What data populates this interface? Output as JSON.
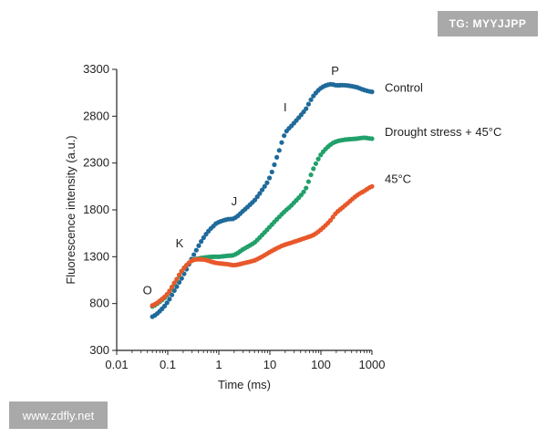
{
  "watermarks": {
    "top": "TG: MYYJJPP",
    "bottom": "www.zdfly.net"
  },
  "chart_data": {
    "type": "scatter",
    "title": "",
    "xlabel": "Time (ms)",
    "ylabel": "Fluorescence intensity (a.u.)",
    "x_scale": "log",
    "xlim": [
      0.01,
      1000
    ],
    "ylim": [
      300,
      3300
    ],
    "xticks": [
      0.01,
      0.1,
      1,
      10,
      100,
      1000
    ],
    "xtick_labels": [
      "0.01",
      "0.1",
      "1",
      "10",
      "100",
      "1000"
    ],
    "yticks": [
      300,
      800,
      1300,
      1800,
      2300,
      2800,
      3300
    ],
    "ytick_labels": [
      "300",
      "800",
      "1300",
      "1800",
      "2300",
      "2800",
      "3300"
    ],
    "grid": false,
    "legend": "inline-right",
    "series": [
      {
        "name": "Control",
        "color": "#1f6a9a",
        "x": [
          0.05,
          0.07,
          0.1,
          0.15,
          0.2,
          0.3,
          0.5,
          0.8,
          1,
          1.5,
          2,
          3,
          5,
          7,
          10,
          15,
          20,
          30,
          50,
          70,
          100,
          150,
          200,
          300,
          500,
          700,
          1000
        ],
        "y": [
          660,
          720,
          820,
          980,
          1100,
          1290,
          1500,
          1630,
          1670,
          1700,
          1710,
          1790,
          1900,
          2010,
          2150,
          2420,
          2620,
          2730,
          2870,
          3010,
          3100,
          3140,
          3130,
          3130,
          3110,
          3080,
          3060
        ]
      },
      {
        "name": "Drought stress + 45°C",
        "color": "#21a06a",
        "x": [
          0.05,
          0.07,
          0.1,
          0.15,
          0.2,
          0.3,
          0.5,
          0.8,
          1,
          1.5,
          2,
          3,
          5,
          7,
          10,
          15,
          20,
          30,
          50,
          70,
          100,
          150,
          200,
          300,
          500,
          700,
          1000
        ],
        "y": [
          770,
          820,
          900,
          1050,
          1170,
          1260,
          1290,
          1300,
          1300,
          1310,
          1320,
          1380,
          1450,
          1530,
          1620,
          1720,
          1790,
          1880,
          2020,
          2230,
          2390,
          2490,
          2530,
          2550,
          2560,
          2570,
          2560
        ]
      },
      {
        "name": "45°C",
        "color": "#e8582a",
        "x": [
          0.05,
          0.07,
          0.1,
          0.15,
          0.2,
          0.3,
          0.5,
          0.8,
          1,
          1.5,
          2,
          3,
          5,
          7,
          10,
          15,
          20,
          30,
          50,
          70,
          100,
          150,
          200,
          300,
          500,
          700,
          1000
        ],
        "y": [
          780,
          830,
          910,
          1060,
          1170,
          1260,
          1270,
          1240,
          1230,
          1220,
          1210,
          1230,
          1260,
          1300,
          1350,
          1400,
          1430,
          1460,
          1500,
          1530,
          1590,
          1680,
          1770,
          1850,
          1950,
          2000,
          2050
        ]
      }
    ],
    "annotations": [
      {
        "text": "O",
        "x": 0.04,
        "y": 900
      },
      {
        "text": "K",
        "x": 0.17,
        "y": 1400
      },
      {
        "text": "J",
        "x": 2.0,
        "y": 1850
      },
      {
        "text": "I",
        "x": 20,
        "y": 2850
      },
      {
        "text": "P",
        "x": 190,
        "y": 3240
      }
    ]
  }
}
